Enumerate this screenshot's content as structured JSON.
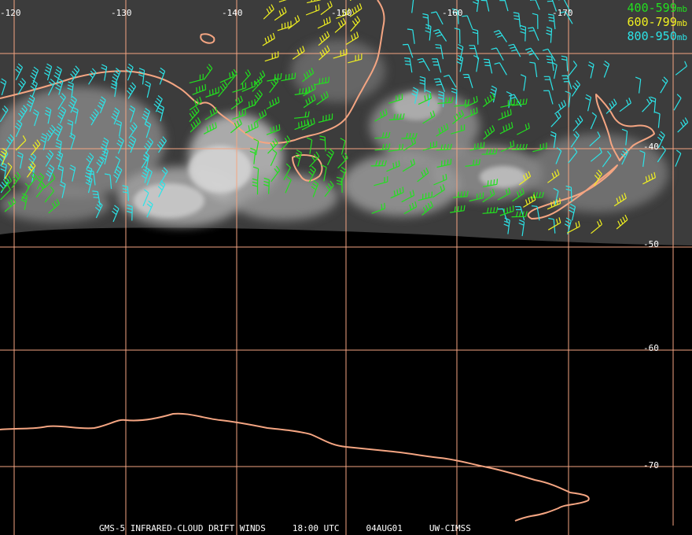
{
  "colors": {
    "grid": "#f4a582",
    "coast": "#f4a582",
    "text": "#ffffff",
    "level_400_599": "#22e01f",
    "level_600_799": "#f0f020",
    "level_800_950": "#2ce4e8"
  },
  "longitude_labels": [
    "-120",
    "-130",
    "-140",
    "-150",
    "-160",
    "-170"
  ],
  "latitude_labels": [
    "-40",
    "-50",
    "-60",
    "-70"
  ],
  "legend": {
    "items": [
      {
        "label": "400-599",
        "unit": "mb",
        "color": "#22e01f"
      },
      {
        "label": "600-799",
        "unit": "mb",
        "color": "#f0f020"
      },
      {
        "label": "800-950",
        "unit": "mb",
        "color": "#2ce4e8"
      }
    ]
  },
  "footer": {
    "product": "GMS-5 INFRARED-CLOUD DRIFT WINDS",
    "time": "18:00 UTC",
    "date": "04AUG01",
    "source": "UW-CIMSS"
  }
}
